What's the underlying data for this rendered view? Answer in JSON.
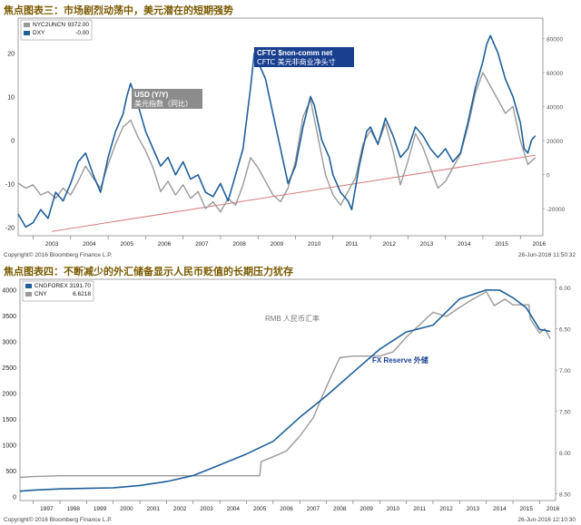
{
  "header": {
    "chart1_title": "焦点图表三：市场剧烈动荡中，美元潜在的短期强势",
    "chart2_title": "焦点图表四：不断减少的外汇储备显示人民币贬值的长期压力犹存"
  },
  "footer": {
    "chart1_copyright": "Copyright© 2016 Bloomberg Finance L.P.",
    "chart1_date": "26-Jun-2016 11:50:32",
    "chart2_copyright": "Copyright© 2016 Bloomberg Finance L.P.",
    "chart2_date": "26-Jun-2016 12:10:30"
  },
  "colors": {
    "blue": "#1f5f99",
    "gray": "#9a9a9a",
    "trend": "#d87a7a",
    "grid": "#c8c8c8",
    "label_bg_blue": "#1a3f8f",
    "label_bg_gray": "#8c8c8c"
  },
  "chart_data": [
    {
      "type": "line",
      "legend": [
        {
          "name": "NYC2UNCN",
          "value": "9372.00",
          "color": "#9a9a9a"
        },
        {
          "name": "DXY",
          "value": "-0.00",
          "color": "#1f5f99"
        }
      ],
      "x_tick_labels": [
        "2003",
        "2004",
        "2005",
        "2006",
        "2007",
        "2008",
        "2009",
        "2010",
        "2011",
        "2012",
        "2013",
        "2014",
        "2015",
        "2016"
      ],
      "xlim": [
        2002.6,
        2016.6
      ],
      "left_axis": {
        "ticks": [
          -20,
          -10,
          0,
          10,
          20
        ],
        "range": [
          -22,
          28
        ]
      },
      "right_axis": {
        "ticks": [
          -20000,
          0,
          20000,
          40000,
          60000,
          80000
        ],
        "range": [
          -36000,
          92000
        ]
      },
      "annotations": [
        {
          "line1": "USD (Y/Y)",
          "line2": "美元指数（同比）",
          "style": "gray"
        },
        {
          "line1": "CFTC $non-comm net",
          "line2": "CFTC 美元非商业净头寸",
          "style": "blue"
        }
      ],
      "trendline": {
        "from": [
          2003.5,
          -21
        ],
        "to": [
          2016.4,
          -3.5
        ]
      },
      "series": [
        {
          "name": "DXY",
          "axis": "left",
          "color": "#1f5f99",
          "points": [
            [
              2002.6,
              -17
            ],
            [
              2002.8,
              -20
            ],
            [
              2003.0,
              -19
            ],
            [
              2003.2,
              -16
            ],
            [
              2003.4,
              -18
            ],
            [
              2003.6,
              -12
            ],
            [
              2003.8,
              -14
            ],
            [
              2004.0,
              -10
            ],
            [
              2004.2,
              -5
            ],
            [
              2004.4,
              -3
            ],
            [
              2004.6,
              -8
            ],
            [
              2004.8,
              -12
            ],
            [
              2005.0,
              -4
            ],
            [
              2005.2,
              2
            ],
            [
              2005.4,
              6
            ],
            [
              2005.5,
              10
            ],
            [
              2005.6,
              13
            ],
            [
              2005.8,
              8
            ],
            [
              2006.0,
              2
            ],
            [
              2006.2,
              -2
            ],
            [
              2006.4,
              -6
            ],
            [
              2006.6,
              -4
            ],
            [
              2006.8,
              -8
            ],
            [
              2007.0,
              -5
            ],
            [
              2007.2,
              -9
            ],
            [
              2007.4,
              -8
            ],
            [
              2007.6,
              -12
            ],
            [
              2007.8,
              -13
            ],
            [
              2008.0,
              -10
            ],
            [
              2008.2,
              -14
            ],
            [
              2008.4,
              -8
            ],
            [
              2008.6,
              -2
            ],
            [
              2008.8,
              12
            ],
            [
              2008.9,
              20
            ],
            [
              2009.0,
              18
            ],
            [
              2009.2,
              14
            ],
            [
              2009.4,
              6
            ],
            [
              2009.6,
              -2
            ],
            [
              2009.8,
              -10
            ],
            [
              2010.0,
              -6
            ],
            [
              2010.2,
              3
            ],
            [
              2010.4,
              10
            ],
            [
              2010.5,
              8
            ],
            [
              2010.7,
              0
            ],
            [
              2010.9,
              -4
            ],
            [
              2011.0,
              -8
            ],
            [
              2011.2,
              -12
            ],
            [
              2011.4,
              -14
            ],
            [
              2011.5,
              -16
            ],
            [
              2011.7,
              -6
            ],
            [
              2011.9,
              2
            ],
            [
              2012.0,
              3
            ],
            [
              2012.2,
              -1
            ],
            [
              2012.4,
              5
            ],
            [
              2012.6,
              1
            ],
            [
              2012.8,
              -4
            ],
            [
              2013.0,
              -2
            ],
            [
              2013.2,
              3
            ],
            [
              2013.4,
              1
            ],
            [
              2013.6,
              -2
            ],
            [
              2013.8,
              -4
            ],
            [
              2014.0,
              -2
            ],
            [
              2014.2,
              -5
            ],
            [
              2014.4,
              -3
            ],
            [
              2014.6,
              4
            ],
            [
              2014.8,
              12
            ],
            [
              2015.0,
              18
            ],
            [
              2015.1,
              22
            ],
            [
              2015.2,
              24
            ],
            [
              2015.4,
              20
            ],
            [
              2015.6,
              14
            ],
            [
              2015.8,
              10
            ],
            [
              2016.0,
              4
            ],
            [
              2016.1,
              -2
            ],
            [
              2016.2,
              -3
            ],
            [
              2016.3,
              0
            ],
            [
              2016.4,
              1
            ]
          ]
        },
        {
          "name": "NYC2UNCN",
          "axis": "right",
          "color": "#9a9a9a",
          "points": [
            [
              2002.6,
              -5000
            ],
            [
              2002.8,
              -8000
            ],
            [
              2003.0,
              -6000
            ],
            [
              2003.2,
              -12000
            ],
            [
              2003.4,
              -10000
            ],
            [
              2003.6,
              -14000
            ],
            [
              2003.8,
              -8000
            ],
            [
              2004.0,
              -12000
            ],
            [
              2004.2,
              -4000
            ],
            [
              2004.4,
              5000
            ],
            [
              2004.6,
              -2000
            ],
            [
              2004.8,
              -8000
            ],
            [
              2005.0,
              6000
            ],
            [
              2005.2,
              18000
            ],
            [
              2005.4,
              28000
            ],
            [
              2005.6,
              32000
            ],
            [
              2005.8,
              22000
            ],
            [
              2006.0,
              14000
            ],
            [
              2006.2,
              4000
            ],
            [
              2006.4,
              -10000
            ],
            [
              2006.6,
              -4000
            ],
            [
              2006.8,
              -12000
            ],
            [
              2007.0,
              -6000
            ],
            [
              2007.2,
              -14000
            ],
            [
              2007.4,
              -10000
            ],
            [
              2007.6,
              -20000
            ],
            [
              2007.8,
              -16000
            ],
            [
              2008.0,
              -22000
            ],
            [
              2008.2,
              -14000
            ],
            [
              2008.4,
              -18000
            ],
            [
              2008.6,
              -6000
            ],
            [
              2008.8,
              10000
            ],
            [
              2009.0,
              4000
            ],
            [
              2009.2,
              -4000
            ],
            [
              2009.4,
              -12000
            ],
            [
              2009.6,
              -16000
            ],
            [
              2009.8,
              -8000
            ],
            [
              2010.0,
              8000
            ],
            [
              2010.2,
              34000
            ],
            [
              2010.4,
              44000
            ],
            [
              2010.6,
              22000
            ],
            [
              2010.8,
              0
            ],
            [
              2011.0,
              -12000
            ],
            [
              2011.2,
              -18000
            ],
            [
              2011.4,
              -10000
            ],
            [
              2011.6,
              -2000
            ],
            [
              2011.8,
              18000
            ],
            [
              2012.0,
              26000
            ],
            [
              2012.2,
              18000
            ],
            [
              2012.4,
              30000
            ],
            [
              2012.6,
              14000
            ],
            [
              2012.8,
              -6000
            ],
            [
              2013.0,
              8000
            ],
            [
              2013.2,
              24000
            ],
            [
              2013.4,
              16000
            ],
            [
              2013.6,
              4000
            ],
            [
              2013.8,
              -8000
            ],
            [
              2014.0,
              -4000
            ],
            [
              2014.2,
              4000
            ],
            [
              2014.4,
              12000
            ],
            [
              2014.6,
              28000
            ],
            [
              2014.8,
              48000
            ],
            [
              2015.0,
              60000
            ],
            [
              2015.2,
              52000
            ],
            [
              2015.4,
              44000
            ],
            [
              2015.6,
              36000
            ],
            [
              2015.8,
              40000
            ],
            [
              2016.0,
              20000
            ],
            [
              2016.2,
              6000
            ],
            [
              2016.4,
              10000
            ]
          ]
        }
      ]
    },
    {
      "type": "line",
      "legend": [
        {
          "name": "CNGFOREX",
          "value": "3191.70",
          "color": "#1f5f99"
        },
        {
          "name": "CNY",
          "value": "6.6218",
          "color": "#9a9a9a"
        }
      ],
      "x_tick_labels": [
        "1997",
        "1998",
        "1999",
        "2000",
        "2001",
        "2002",
        "2003",
        "2004",
        "2005",
        "2006",
        "2007",
        "2008",
        "2009",
        "2010",
        "2011",
        "2012",
        "2013",
        "2014",
        "2015",
        "2016"
      ],
      "xlim": [
        1996.5,
        2016.6
      ],
      "left_axis": {
        "ticks": [
          0,
          500,
          1000,
          1500,
          2000,
          2500,
          3000,
          3500,
          4000
        ],
        "range": [
          -80,
          4200
        ]
      },
      "right_axis": {
        "ticks": [
          "6.00",
          "6.50",
          "7.00",
          "7.50",
          "8.00",
          "8.50"
        ],
        "values": [
          6.0,
          6.5,
          7.0,
          7.5,
          8.0,
          8.5
        ],
        "range": [
          5.9,
          8.58
        ]
      },
      "annotations": [
        {
          "text": "RMB 人民币汇率",
          "style": "gray"
        },
        {
          "text": "FX Reserve 外储",
          "style": "blue"
        }
      ],
      "series": [
        {
          "name": "CNGFOREX",
          "axis": "left",
          "color": "#1f5f99",
          "points": [
            [
              1996.5,
              100
            ],
            [
              1997.0,
              120
            ],
            [
              1998.0,
              145
            ],
            [
              1999.0,
              155
            ],
            [
              2000.0,
              165
            ],
            [
              2001.0,
              212
            ],
            [
              2002.0,
              286
            ],
            [
              2003.0,
              403
            ],
            [
              2004.0,
              610
            ],
            [
              2005.0,
              819
            ],
            [
              2006.0,
              1066
            ],
            [
              2007.0,
              1528
            ],
            [
              2008.0,
              1946
            ],
            [
              2009.0,
              2399
            ],
            [
              2010.0,
              2847
            ],
            [
              2011.0,
              3181
            ],
            [
              2012.0,
              3312
            ],
            [
              2013.0,
              3821
            ],
            [
              2014.0,
              3993
            ],
            [
              2014.5,
              3990
            ],
            [
              2015.0,
              3843
            ],
            [
              2015.5,
              3650
            ],
            [
              2016.0,
              3230
            ],
            [
              2016.4,
              3192
            ]
          ]
        },
        {
          "name": "CNY",
          "axis": "right",
          "color": "#9a9a9a",
          "points": [
            [
              1996.5,
              8.3
            ],
            [
              1997.0,
              8.29
            ],
            [
              1998.0,
              8.28
            ],
            [
              2000.0,
              8.28
            ],
            [
              2002.0,
              8.28
            ],
            [
              2004.0,
              8.28
            ],
            [
              2005.5,
              8.28
            ],
            [
              2005.55,
              8.11
            ],
            [
              2006.0,
              8.05
            ],
            [
              2006.5,
              7.98
            ],
            [
              2007.0,
              7.8
            ],
            [
              2007.5,
              7.58
            ],
            [
              2008.0,
              7.2
            ],
            [
              2008.5,
              6.85
            ],
            [
              2009.0,
              6.83
            ],
            [
              2010.0,
              6.83
            ],
            [
              2010.5,
              6.78
            ],
            [
              2011.0,
              6.6
            ],
            [
              2011.5,
              6.45
            ],
            [
              2012.0,
              6.3
            ],
            [
              2012.5,
              6.35
            ],
            [
              2013.0,
              6.24
            ],
            [
              2013.5,
              6.14
            ],
            [
              2014.0,
              6.05
            ],
            [
              2014.3,
              6.22
            ],
            [
              2014.7,
              6.14
            ],
            [
              2015.0,
              6.21
            ],
            [
              2015.6,
              6.21
            ],
            [
              2015.65,
              6.38
            ],
            [
              2016.0,
              6.55
            ],
            [
              2016.2,
              6.5
            ],
            [
              2016.4,
              6.62
            ]
          ]
        }
      ]
    }
  ]
}
